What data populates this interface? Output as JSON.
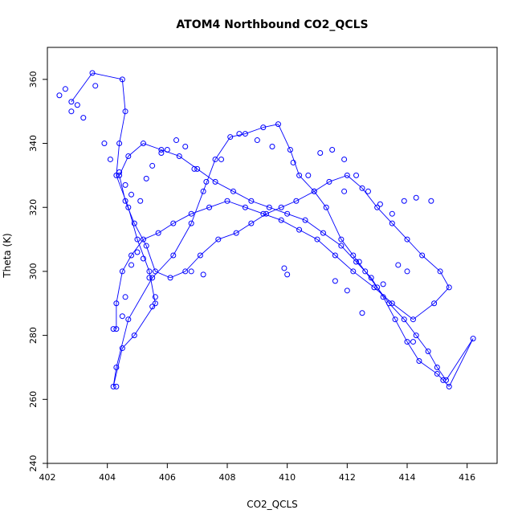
{
  "chart_data": {
    "type": "scatter",
    "title": "ATOM4 Northbound CO2_QCLS",
    "xlabel": "CO2_QCLS",
    "ylabel": "Theta (K)",
    "xlim": [
      402,
      417
    ],
    "ylim": [
      240,
      370
    ],
    "xticks": [
      402,
      404,
      406,
      408,
      410,
      412,
      414,
      416
    ],
    "yticks": [
      240,
      260,
      280,
      300,
      320,
      340,
      360
    ],
    "grid": false,
    "marker": "open-circle",
    "connected": true,
    "color": "#0000ff",
    "series": [
      {
        "x": [
          402.8,
          403.5,
          404.5,
          404.6,
          404.4,
          404.3,
          404.7,
          405.0,
          405.4,
          405.6,
          404.9,
          404.5,
          404.2,
          404.3,
          404.7,
          405.5,
          406.2,
          406.8,
          407.2,
          407.6,
          408.1,
          408.6,
          409.2,
          409.7,
          410.1,
          410.4,
          410.9,
          411.3,
          411.8,
          412.2,
          412.6,
          413.0,
          413.4,
          413.9,
          414.3,
          414.7,
          415.0,
          415.3,
          416.2,
          415.4,
          415.0,
          414.4,
          414.0,
          413.6,
          413.2,
          412.8,
          412.3,
          411.8,
          411.2,
          410.6,
          410.0,
          409.4,
          408.8,
          408.2,
          407.6,
          407.0,
          406.4,
          405.8,
          405.2,
          404.7,
          404.4,
          404.6,
          404.9,
          405.3,
          405.6,
          406.1,
          406.6,
          407.1,
          407.7,
          408.3,
          408.8,
          409.3,
          409.8,
          410.3,
          410.9,
          411.4,
          412.0,
          412.5,
          413.0,
          413.5,
          414.0,
          414.5,
          415.1,
          415.4,
          414.9,
          414.2,
          413.5,
          412.9,
          412.2,
          411.6,
          411.0,
          410.4,
          409.8,
          409.2,
          408.6,
          408.0,
          407.4,
          406.8,
          406.2,
          405.7,
          405.2,
          404.8,
          404.5,
          404.3,
          404.3
        ],
        "y": [
          353,
          362,
          360,
          350,
          340,
          330,
          320,
          310,
          300,
          290,
          280,
          276,
          264,
          270,
          285,
          298,
          305,
          315,
          325,
          335,
          342,
          343,
          345,
          346,
          338,
          330,
          325,
          320,
          310,
          305,
          300,
          295,
          290,
          285,
          280,
          275,
          270,
          266,
          279,
          264,
          268,
          272,
          278,
          285,
          292,
          298,
          303,
          308,
          312,
          316,
          318,
          320,
          322,
          325,
          328,
          332,
          336,
          338,
          340,
          336,
          330,
          322,
          315,
          308,
          300,
          298,
          300,
          305,
          310,
          312,
          315,
          318,
          320,
          322,
          325,
          328,
          330,
          326,
          320,
          315,
          310,
          305,
          300,
          295,
          290,
          285,
          290,
          295,
          300,
          305,
          310,
          313,
          316,
          318,
          320,
          322,
          320,
          318,
          315,
          312,
          310,
          305,
          300,
          290,
          282
        ],
        "points_only": {
          "x": [
            402.4,
            402.6,
            402.8,
            403.0,
            403.2,
            403.6,
            403.9,
            404.1,
            404.4,
            404.6,
            404.8,
            405.1,
            405.3,
            405.5,
            405.8,
            406.0,
            406.3,
            406.6,
            406.9,
            407.3,
            407.8,
            408.4,
            409.0,
            409.5,
            410.2,
            410.7,
            411.1,
            411.5,
            411.9,
            412.3,
            412.7,
            413.1,
            413.5,
            413.9,
            414.3,
            414.8,
            412.0,
            411.6,
            413.2,
            412.5,
            410.0,
            409.9,
            406.8,
            407.2,
            405.5,
            405.6,
            404.3,
            404.2,
            404.5,
            404.6,
            404.8,
            405.0,
            405.2,
            405.4,
            411.9,
            412.4,
            413.7,
            414.2,
            415.2,
            414.0
          ],
          "y": [
            355,
            357,
            350,
            352,
            348,
            358,
            340,
            335,
            331,
            327,
            324,
            322,
            329,
            333,
            337,
            338,
            341,
            339,
            332,
            328,
            335,
            343,
            341,
            339,
            334,
            330,
            337,
            338,
            335,
            330,
            325,
            321,
            318,
            322,
            323,
            322,
            294,
            297,
            296,
            287,
            299,
            301,
            300,
            299,
            289,
            292,
            264,
            282,
            286,
            292,
            302,
            306,
            304,
            298,
            325,
            303,
            302,
            278,
            266,
            300
          ]
        }
      }
    ]
  }
}
